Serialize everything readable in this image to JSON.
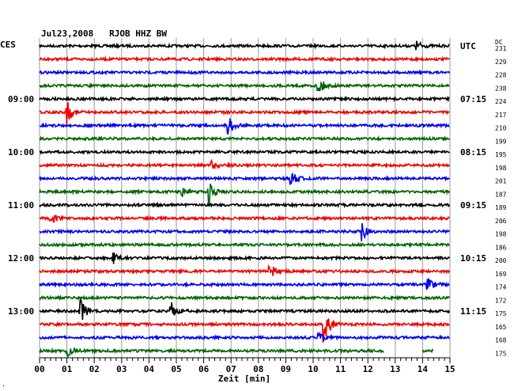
{
  "chart_data": {
    "type": "line",
    "title": "Jul23,2008   RJOB HHZ BW",
    "left_label": "CES",
    "right_label": "UTC",
    "dc_header": "DC",
    "xlabel": "Zeit [min]",
    "x_ticks": [
      "00",
      "01",
      "02",
      "03",
      "04",
      "05",
      "06",
      "07",
      "08",
      "09",
      "10",
      "11",
      "12",
      "13",
      "14",
      "15"
    ],
    "xlim": [
      0,
      15
    ],
    "grid": "vertical lines each minute",
    "left_time_labels": [
      {
        "row": 4,
        "label": "09:00"
      },
      {
        "row": 8,
        "label": "10:00"
      },
      {
        "row": 12,
        "label": "11:00"
      },
      {
        "row": 16,
        "label": "12:00"
      },
      {
        "row": 20,
        "label": "13:00"
      }
    ],
    "right_time_labels": [
      {
        "row": 0,
        "label": "UTC"
      },
      {
        "row": 4,
        "label": "07:15"
      },
      {
        "row": 8,
        "label": "08:15"
      },
      {
        "row": 12,
        "label": "09:15"
      },
      {
        "row": 16,
        "label": "10:15"
      },
      {
        "row": 20,
        "label": "11:15"
      }
    ],
    "trace_colors": [
      "#000000",
      "#ee0000",
      "#0000ee",
      "#006400"
    ],
    "dc_values": [
      "231",
      "229",
      "228",
      "238",
      "224",
      "217",
      "210",
      "199",
      "195",
      "198",
      "201",
      "187",
      "189",
      "206",
      "198",
      "186",
      "200",
      "169",
      "174",
      "172",
      "175",
      "165",
      "168",
      "175"
    ],
    "events": [
      {
        "row": 0,
        "minute": 13.8,
        "amplitude": 0.5
      },
      {
        "row": 3,
        "minute": 10.2,
        "amplitude": 0.9
      },
      {
        "row": 5,
        "minute": 1.0,
        "amplitude": 1.2
      },
      {
        "row": 6,
        "minute": 6.9,
        "amplitude": 1.0
      },
      {
        "row": 9,
        "minute": 6.3,
        "amplitude": 0.5
      },
      {
        "row": 10,
        "minute": 9.2,
        "amplitude": 0.7
      },
      {
        "row": 11,
        "minute": 6.2,
        "amplitude": 1.2
      },
      {
        "row": 11,
        "minute": 5.2,
        "amplitude": 0.5
      },
      {
        "row": 13,
        "minute": 0.4,
        "amplitude": 0.8
      },
      {
        "row": 14,
        "minute": 11.8,
        "amplitude": 0.9
      },
      {
        "row": 16,
        "minute": 2.7,
        "amplitude": 0.6
      },
      {
        "row": 17,
        "minute": 8.4,
        "amplitude": 0.9
      },
      {
        "row": 18,
        "minute": 14.2,
        "amplitude": 0.9
      },
      {
        "row": 20,
        "minute": 1.5,
        "amplitude": 1.3
      },
      {
        "row": 20,
        "minute": 4.8,
        "amplitude": 1.0
      },
      {
        "row": 21,
        "minute": 10.4,
        "amplitude": 1.8
      },
      {
        "row": 22,
        "minute": 10.2,
        "amplitude": 0.4
      },
      {
        "row": 23,
        "minute": 1.0,
        "amplitude": 0.7
      }
    ],
    "last_row_gaps": [
      [
        12.6,
        14.0
      ],
      [
        14.4,
        15.0
      ]
    ]
  }
}
